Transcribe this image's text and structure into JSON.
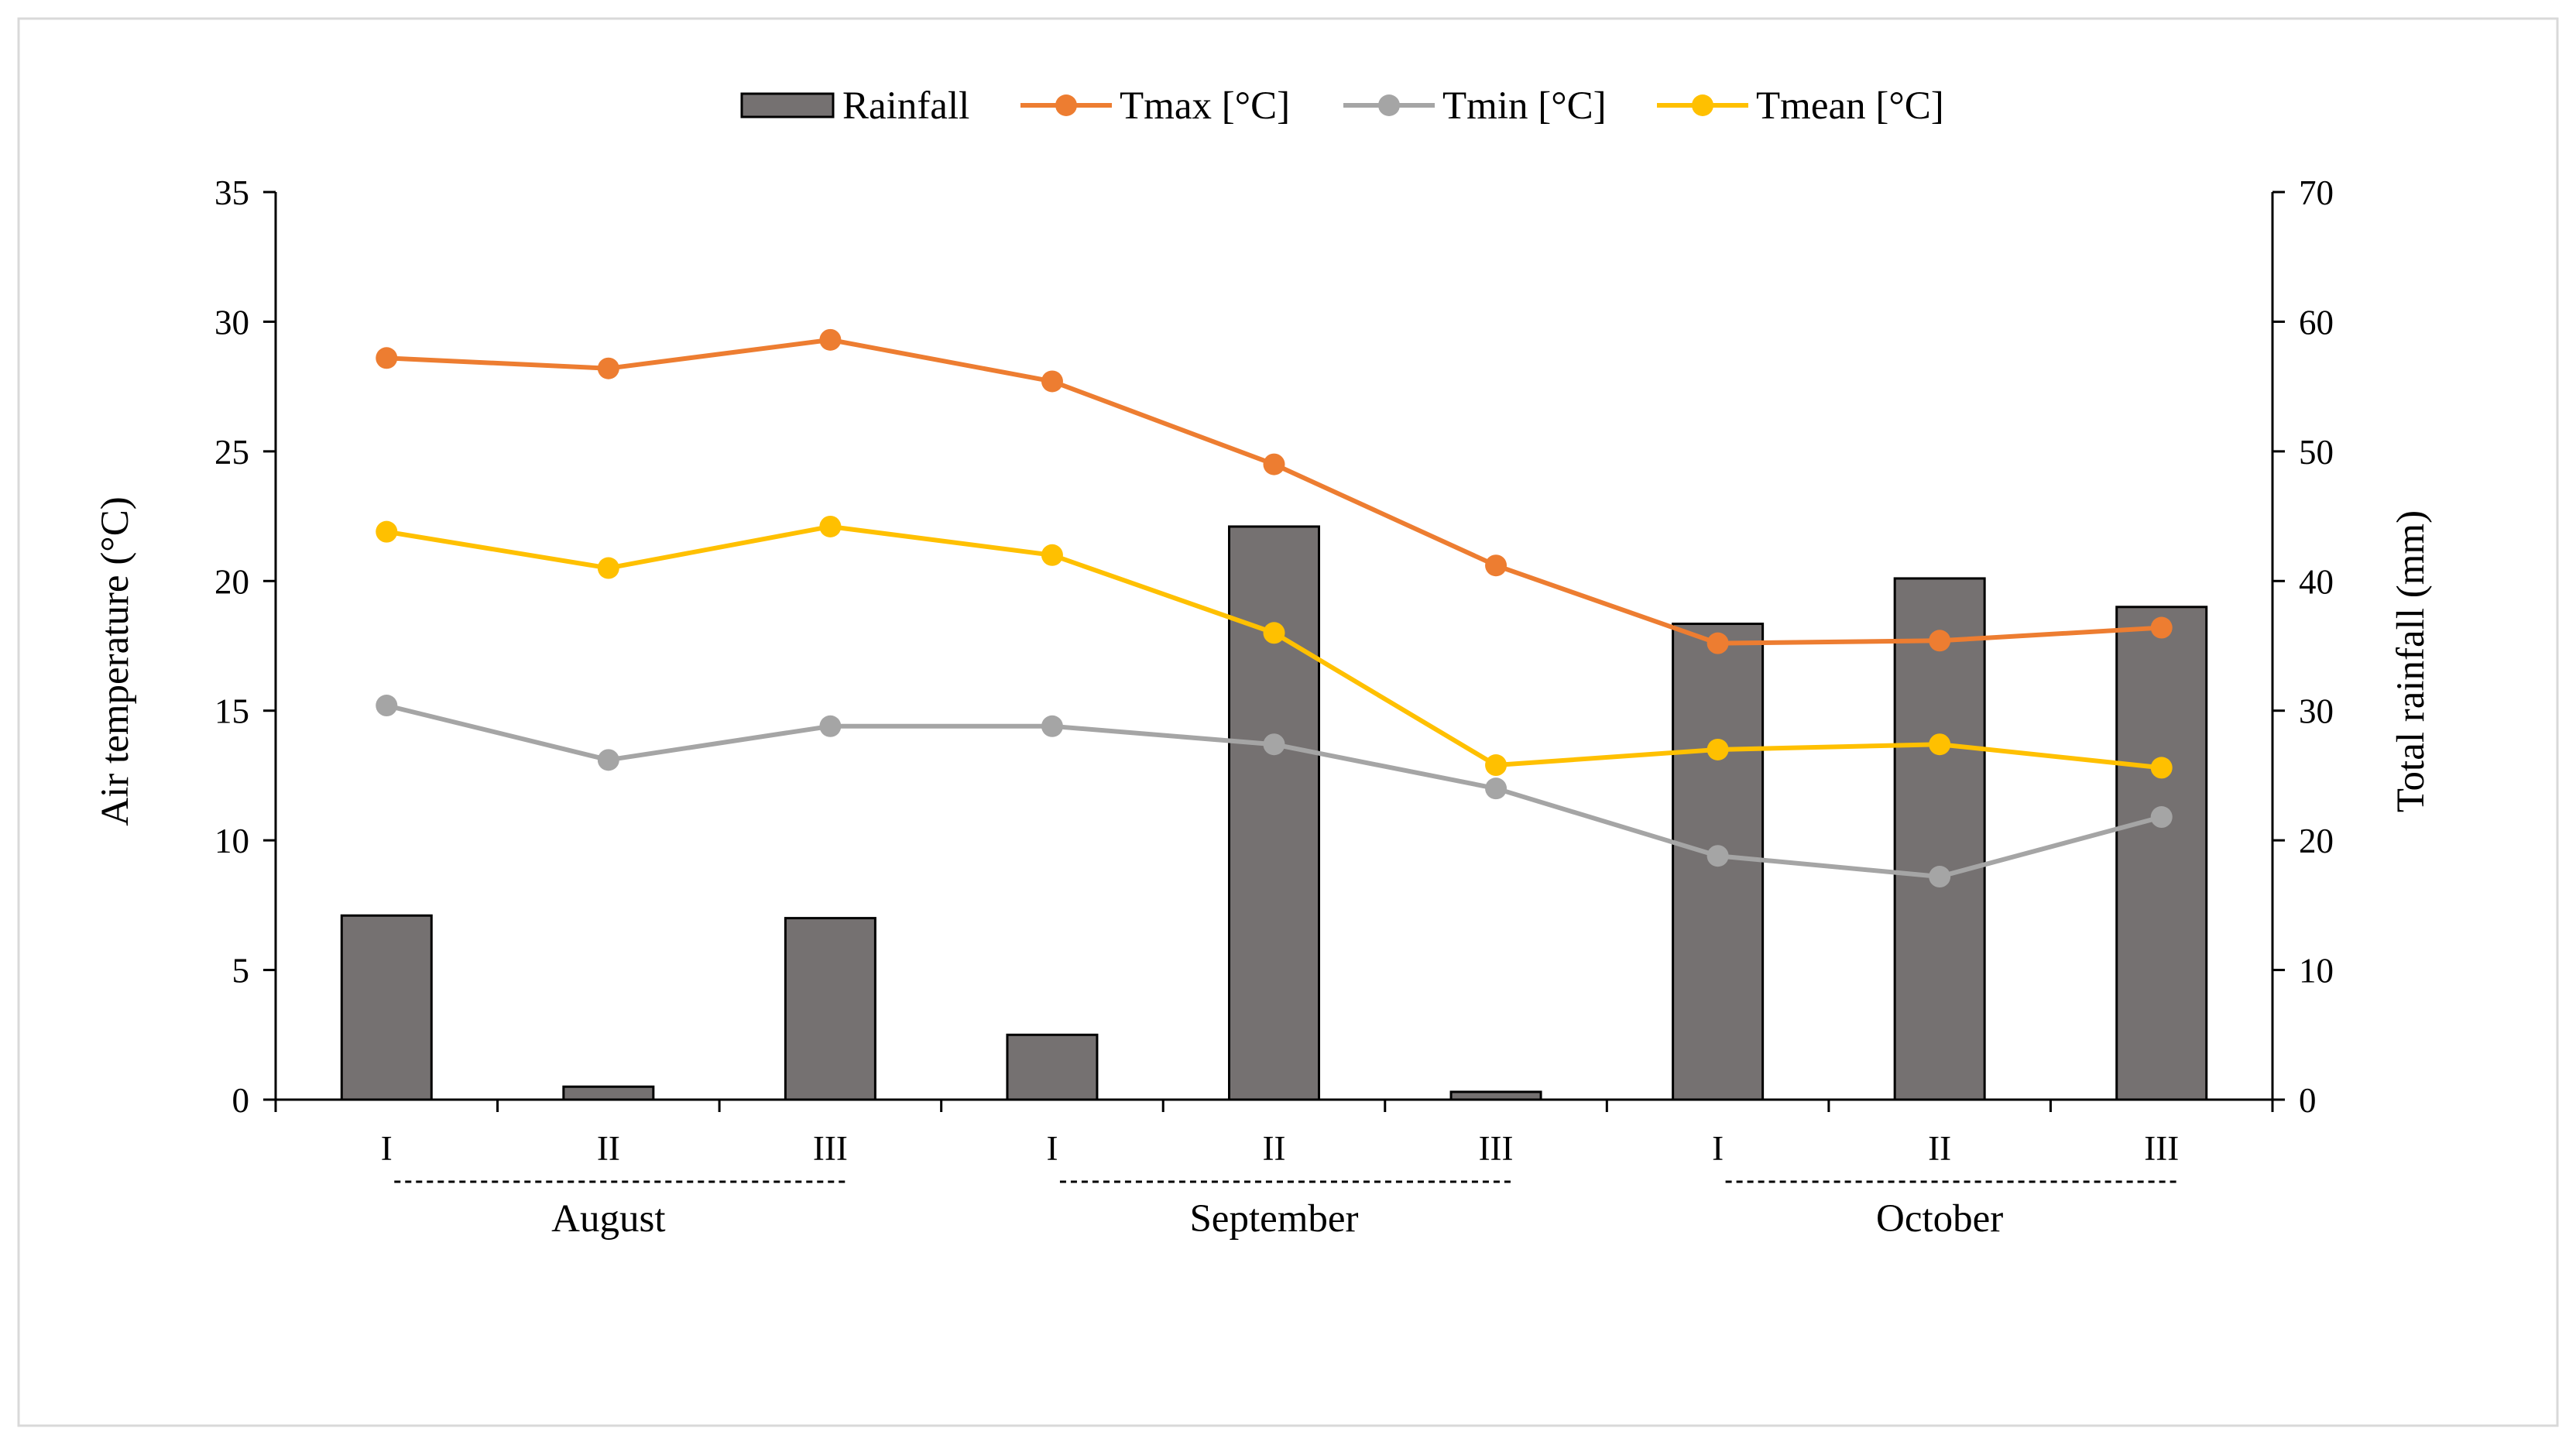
{
  "chart_data": {
    "type": "bar",
    "title": "",
    "categories": [
      "I",
      "II",
      "III",
      "I",
      "II",
      "III",
      "I",
      "II",
      "III"
    ],
    "months": [
      "August",
      "September",
      "October"
    ],
    "ylabel_left": "Air temperature (°C)",
    "ylabel_right": "Total rainfall (mm)",
    "ylim_left": [
      0,
      35
    ],
    "ylim_right": [
      0,
      70
    ],
    "yticks_left": [
      "0",
      "5",
      "10",
      "15",
      "20",
      "25",
      "30",
      "35"
    ],
    "yticks_right": [
      "0",
      "10",
      "20",
      "30",
      "40",
      "50",
      "60",
      "70"
    ],
    "legend_position": "top-center",
    "grid": false,
    "series": [
      {
        "name": "Rainfall",
        "type": "bar",
        "axis": "right",
        "color": "#757171",
        "values": [
          14.2,
          1.0,
          14.0,
          5.0,
          44.2,
          0.6,
          36.7,
          40.2,
          38.0
        ]
      },
      {
        "name": "Tmax [°C]",
        "type": "line",
        "axis": "left",
        "color": "#ED7D31",
        "values": [
          28.6,
          28.2,
          29.3,
          27.7,
          24.5,
          20.6,
          17.6,
          17.7,
          18.2
        ]
      },
      {
        "name": "Tmin [°C]",
        "type": "line",
        "axis": "left",
        "color": "#A5A5A5",
        "values": [
          15.2,
          13.1,
          14.4,
          14.4,
          13.7,
          12.0,
          9.4,
          8.6,
          10.9
        ]
      },
      {
        "name": "Tmean [°C]",
        "type": "line",
        "axis": "left",
        "color": "#FFC000",
        "values": [
          21.9,
          20.5,
          22.1,
          21.0,
          18.0,
          12.9,
          13.5,
          13.7,
          12.8
        ]
      }
    ]
  }
}
